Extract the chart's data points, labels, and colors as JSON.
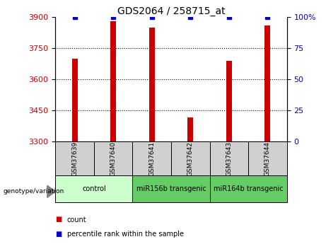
{
  "title": "GDS2064 / 258715_at",
  "samples": [
    "GSM37639",
    "GSM37640",
    "GSM37641",
    "GSM37642",
    "GSM37643",
    "GSM37644"
  ],
  "count_values": [
    3700,
    3880,
    3850,
    3415,
    3690,
    3860
  ],
  "percentile_values": [
    100,
    100,
    100,
    100,
    100,
    100
  ],
  "ylim_left": [
    3300,
    3900
  ],
  "ylim_right": [
    0,
    100
  ],
  "yticks_left": [
    3300,
    3450,
    3600,
    3750,
    3900
  ],
  "yticks_right": [
    0,
    25,
    50,
    75,
    100
  ],
  "ytick_labels_right": [
    "0",
    "25",
    "50",
    "75",
    "100%"
  ],
  "bar_color": "#cc0000",
  "dot_color": "#0000cc",
  "group_info": [
    {
      "label": "control",
      "start": 0,
      "end": 2,
      "color": "#ccffcc"
    },
    {
      "label": "miR156b transgenic",
      "start": 2,
      "end": 4,
      "color": "#66cc66"
    },
    {
      "label": "miR164b transgenic",
      "start": 4,
      "end": 6,
      "color": "#66cc66"
    }
  ],
  "legend_items": [
    {
      "label": "count",
      "color": "#cc0000"
    },
    {
      "label": "percentile rank within the sample",
      "color": "#0000cc"
    }
  ],
  "genotype_label": "genotype/variation",
  "bar_width": 0.15,
  "background_color": "#ffffff",
  "tick_label_color_left": "#cc0000",
  "tick_label_color_right": "#0000cc",
  "sample_box_color": "#d0d0d0",
  "title_fontsize": 10,
  "tick_fontsize": 8,
  "label_fontsize": 7.5
}
